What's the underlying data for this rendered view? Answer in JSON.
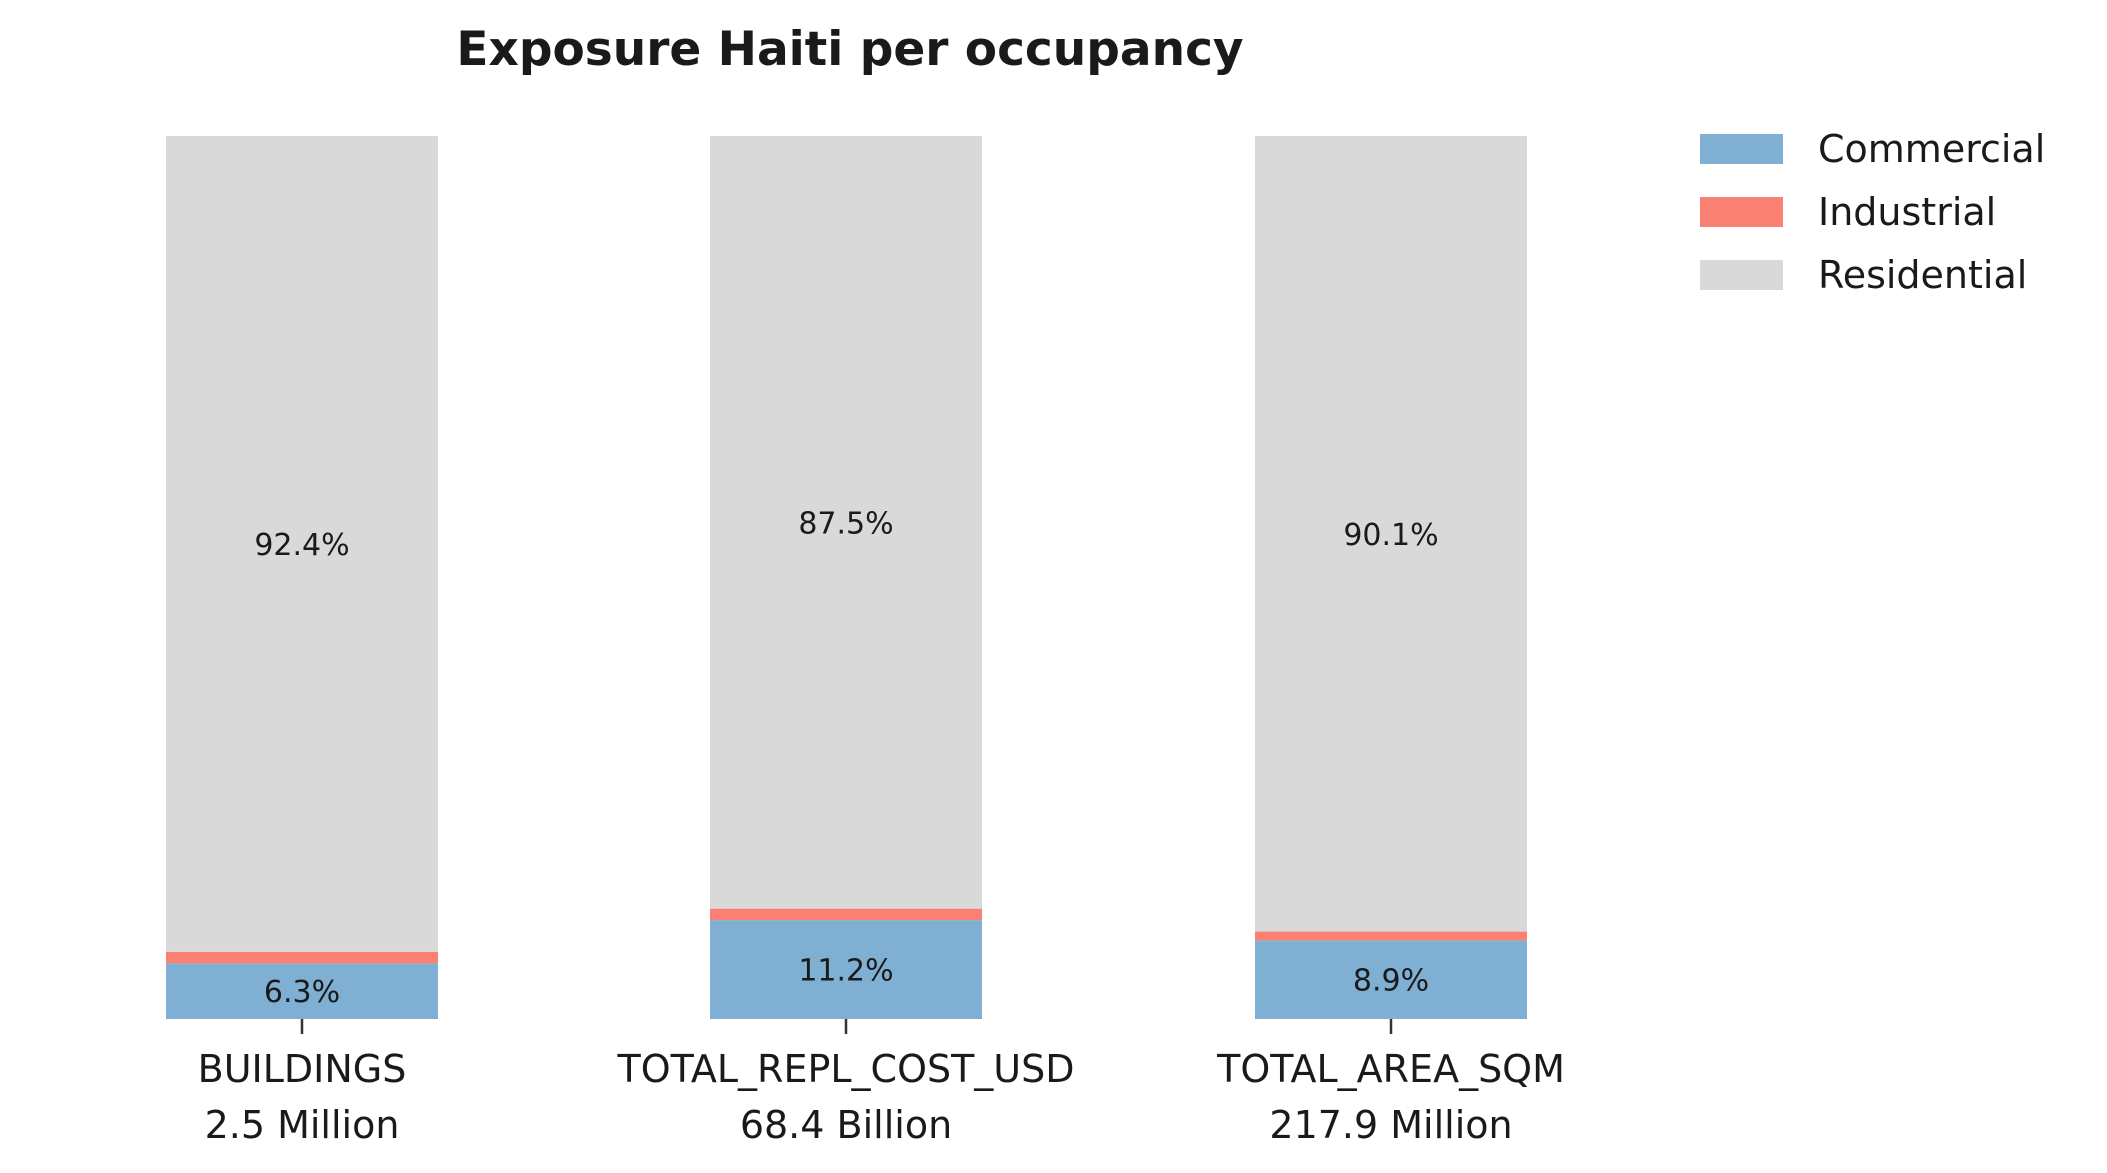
{
  "chart_data": {
    "type": "bar",
    "stacked": true,
    "percent": true,
    "title": "Exposure Haiti per occupancy",
    "xlabel": "",
    "ylabel": "",
    "ylim": [
      0,
      100
    ],
    "categories": [
      "BUILDINGS",
      "TOTAL_REPL_COST_USD",
      "TOTAL_AREA_SQM"
    ],
    "category_totals": [
      "2.5 Million",
      "68.4 Billion",
      "217.9 Million"
    ],
    "series": [
      {
        "name": "Commercial",
        "color": "#7fb0d3",
        "values": [
          6.3,
          11.2,
          8.9
        ],
        "labels": [
          "6.3%",
          "11.2%",
          "8.9%"
        ]
      },
      {
        "name": "Industrial",
        "color": "#f98072",
        "values": [
          1.3,
          1.3,
          1.0
        ],
        "labels": [
          "",
          "",
          ""
        ]
      },
      {
        "name": "Residential",
        "color": "#d9d9d9",
        "values": [
          92.4,
          87.5,
          90.1
        ],
        "labels": [
          "92.4%",
          "87.5%",
          "90.1%"
        ]
      }
    ],
    "legend": {
      "position": "top-right",
      "entries": [
        "Commercial",
        "Industrial",
        "Residential"
      ]
    },
    "grid": false
  }
}
